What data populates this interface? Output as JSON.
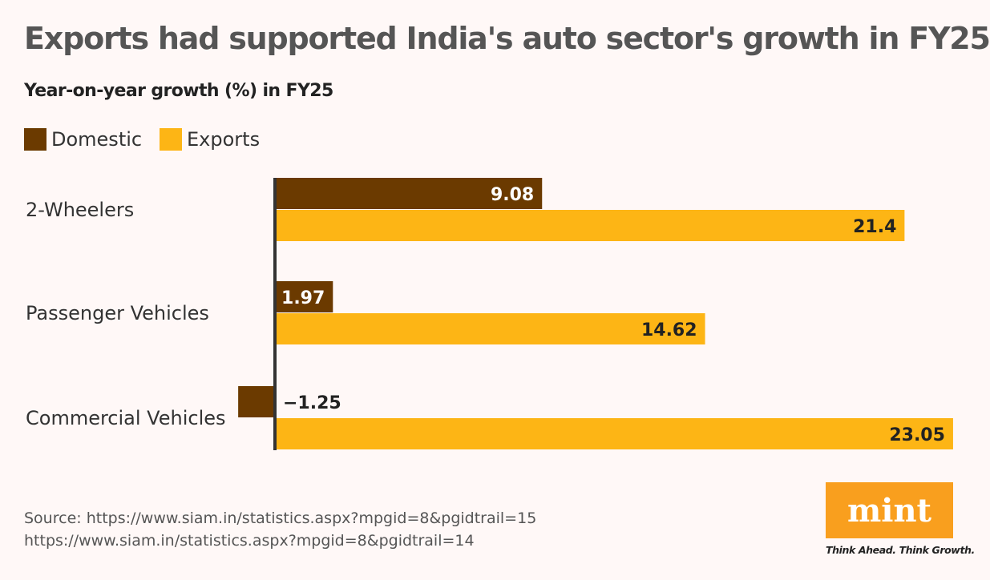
{
  "title": "Exports had supported India's auto sector's growth in FY25",
  "subtitle": "Year-on-year growth (%) in FY25",
  "colors": {
    "domestic": "#6b3a00",
    "exports": "#fdb515",
    "axis": "#333333"
  },
  "chart_data": {
    "type": "bar",
    "orientation": "horizontal",
    "categories": [
      "2-Wheelers",
      "Passenger Vehicles",
      "Commercial Vehicles"
    ],
    "series": [
      {
        "name": "Domestic",
        "values": [
          9.08,
          1.97,
          -1.25
        ],
        "labels": [
          "9.08",
          "1.97",
          "−1.25"
        ]
      },
      {
        "name": "Exports",
        "values": [
          21.4,
          14.62,
          23.05
        ],
        "labels": [
          "21.4",
          "14.62",
          "23.05"
        ]
      }
    ],
    "legend": "top-left",
    "grid": false
  },
  "source": {
    "line1": "Source: https://www.siam.in/statistics.aspx?mpgid=8&pgidtrail=15",
    "line2": "https://www.siam.in/statistics.aspx?mpgid=8&pgidtrail=14"
  },
  "logo": {
    "text": "mint",
    "tagline": "Think Ahead. Think Growth."
  }
}
